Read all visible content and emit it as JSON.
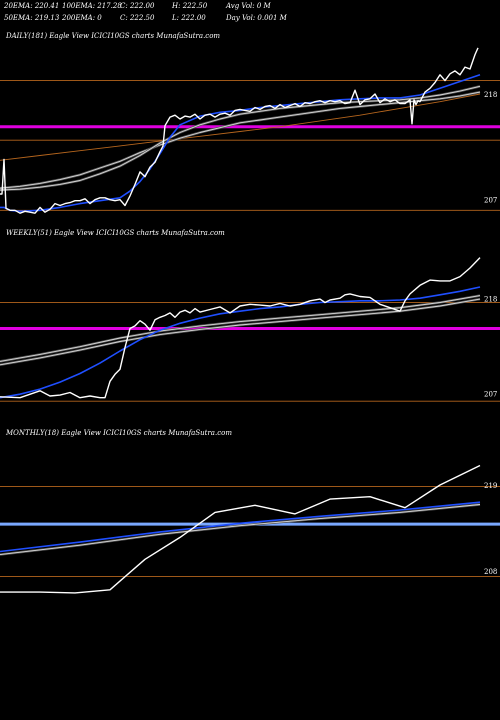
{
  "header": {
    "row1": [
      "20EMA: 220.41",
      "100EMA: 217.28",
      "C: 222.00",
      "H: 222.50",
      "Avg Vol: 0  M"
    ],
    "row2": [
      "50EMA: 219.13",
      "200EMA: 0",
      "C: 222.50",
      "L: 222.00",
      "Day Vol: 0.001 M"
    ]
  },
  "colors": {
    "price": "#ffffff",
    "ema20": "#1f4fff",
    "ema_other": "#d8d8d8",
    "hline_orange": "#b5651d",
    "hline_magenta": "#e000e0",
    "hline_blue": "#7aa8ff"
  },
  "chart_data": [
    {
      "type": "line",
      "title": "DAILY(181) Eagle   View  ICICI10GS charts MunafaSutra.com",
      "ylim": [
        205.5,
        223.5
      ],
      "yticks": [
        {
          "value": 218,
          "label": "218"
        },
        {
          "value": 207,
          "label": "207"
        }
      ],
      "hlines": [
        {
          "value": 219.8,
          "color": "orange"
        },
        {
          "value": 215.0,
          "color": "magenta"
        },
        {
          "value": 213.6,
          "color": "orange"
        },
        {
          "value": 206.3,
          "color": "orange"
        }
      ],
      "series": [
        {
          "role": "price",
          "x": [
            0,
            2,
            4,
            6,
            10,
            15,
            20,
            25,
            30,
            35,
            40,
            45,
            50,
            55,
            60,
            65,
            70,
            75,
            80,
            85,
            90,
            95,
            100,
            105,
            110,
            115,
            120,
            125,
            130,
            135,
            140,
            145,
            150,
            155,
            160,
            163,
            165,
            170,
            175,
            180,
            185,
            190,
            195,
            200,
            205,
            210,
            215,
            220,
            225,
            230,
            235,
            240,
            245,
            250,
            255,
            260,
            265,
            270,
            275,
            280,
            285,
            290,
            295,
            300,
            305,
            310,
            315,
            320,
            325,
            330,
            335,
            340,
            345,
            350,
            355,
            360,
            365,
            370,
            375,
            380,
            385,
            390,
            395,
            400,
            405,
            410,
            412,
            414,
            416,
            418,
            420,
            425,
            430,
            435,
            440,
            445,
            450,
            455,
            460,
            465,
            470,
            475,
            478
          ],
          "y": [
            208,
            208,
            211.6,
            206.5,
            206.3,
            206.3,
            206.0,
            206.2,
            206.1,
            206.0,
            206.6,
            206.1,
            206.4,
            207.0,
            206.8,
            207.0,
            207.1,
            207.3,
            207.3,
            207.5,
            207.0,
            207.4,
            207.6,
            207.6,
            207.4,
            207.3,
            207.4,
            206.8,
            207.8,
            209,
            210.3,
            209.8,
            210.8,
            211.3,
            212.4,
            213,
            215.1,
            216.0,
            216.2,
            215.8,
            216.1,
            216.0,
            216.3,
            215.8,
            216.2,
            216.3,
            216.0,
            216.3,
            216.4,
            216.2,
            216.7,
            216.8,
            216.7,
            216.6,
            217.0,
            216.8,
            217.1,
            217.2,
            216.9,
            217.3,
            217.0,
            217.2,
            217.4,
            217.1,
            217.5,
            217.4,
            217.6,
            217.7,
            217.5,
            217.7,
            217.6,
            217.7,
            217.4,
            217.5,
            218.8,
            217.3,
            217.8,
            217.9,
            218.4,
            217.5,
            217.9,
            217.6,
            217.8,
            217.4,
            217.4,
            217.8,
            215.3,
            217.8,
            217.3,
            217.7,
            217.6,
            218.6,
            219.0,
            219.6,
            220.4,
            219.8,
            220.5,
            220.8,
            220.4,
            221.2,
            221.0,
            222.5,
            223.2
          ]
        },
        {
          "role": "ema20",
          "x": [
            0,
            2,
            4,
            10,
            20,
            40,
            60,
            80,
            100,
            120,
            130,
            140,
            150,
            160,
            170,
            180,
            200,
            220,
            240,
            260,
            280,
            300,
            320,
            340,
            360,
            380,
            400,
            420,
            440,
            460,
            480
          ],
          "y": [
            206.6,
            206.6,
            206.6,
            206.3,
            206.2,
            206.3,
            206.6,
            207.0,
            207.3,
            207.6,
            208.3,
            209.3,
            210.6,
            212.2,
            213.9,
            215.2,
            216.1,
            216.5,
            216.7,
            217.0,
            217.2,
            217.4,
            217.6,
            217.8,
            217.9,
            218.0,
            218.0,
            218.3,
            219.0,
            219.7,
            220.4
          ]
        },
        {
          "role": "ema50",
          "x": [
            0,
            20,
            40,
            60,
            80,
            100,
            120,
            140,
            160,
            180,
            200,
            220,
            240,
            260,
            280,
            300,
            320,
            340,
            360,
            380,
            400,
            420,
            440,
            460,
            480
          ],
          "y": [
            208.4,
            208.5,
            208.7,
            209.0,
            209.4,
            210.1,
            210.9,
            212.0,
            213.3,
            214.4,
            215.2,
            215.8,
            216.3,
            216.6,
            216.9,
            217.1,
            217.3,
            217.5,
            217.6,
            217.7,
            217.8,
            218.0,
            218.3,
            218.7,
            219.2
          ]
        },
        {
          "role": "ema100",
          "x": [
            0,
            20,
            40,
            60,
            80,
            100,
            120,
            140,
            160,
            180,
            200,
            220,
            240,
            260,
            280,
            300,
            320,
            340,
            360,
            380,
            400,
            420,
            440,
            460,
            480
          ],
          "y": [
            208.6,
            208.8,
            209.1,
            209.5,
            210.0,
            210.7,
            211.4,
            212.3,
            213.1,
            213.8,
            214.4,
            214.9,
            215.4,
            215.7,
            216.0,
            216.3,
            216.6,
            216.9,
            217.1,
            217.3,
            217.5,
            217.7,
            217.9,
            218.2,
            218.6
          ]
        },
        {
          "role": "ema_slow",
          "x": [
            0,
            40,
            80,
            120,
            160,
            200,
            240,
            280,
            320,
            360,
            400,
            440,
            480
          ],
          "y": [
            211.5,
            212.0,
            212.5,
            213.0,
            213.5,
            214.0,
            214.5,
            215.0,
            215.6,
            216.2,
            216.9,
            217.6,
            218.4
          ]
        }
      ]
    },
    {
      "type": "line",
      "title": "WEEKLY(51) Eagle   View  ICICI10GS charts MunafaSutra.com",
      "ylim": [
        205,
        225
      ],
      "yticks": [
        {
          "value": 218,
          "label": "218"
        },
        {
          "value": 207,
          "label": "207"
        }
      ],
      "hlines": [
        {
          "value": 218.0,
          "color": "orange"
        },
        {
          "value": 215.0,
          "color": "magenta"
        },
        {
          "value": 206.6,
          "color": "orange"
        }
      ],
      "series": [
        {
          "role": "price",
          "x": [
            0,
            20,
            40,
            50,
            60,
            70,
            80,
            90,
            100,
            105,
            110,
            115,
            120,
            125,
            130,
            135,
            140,
            145,
            150,
            155,
            160,
            165,
            170,
            175,
            180,
            185,
            190,
            195,
            200,
            210,
            220,
            230,
            240,
            250,
            260,
            270,
            280,
            290,
            300,
            310,
            320,
            325,
            330,
            340,
            345,
            350,
            360,
            370,
            380,
            390,
            400,
            405,
            410,
            420,
            430,
            440,
            450,
            460,
            470,
            480
          ],
          "y": [
            207.1,
            207.0,
            207.8,
            207.2,
            207.3,
            207.6,
            207.0,
            207.2,
            207.0,
            207.0,
            208.9,
            209.7,
            210.3,
            212.8,
            215.0,
            215.3,
            215.9,
            215.5,
            214.8,
            216.0,
            216.3,
            216.5,
            216.8,
            216.3,
            216.9,
            217.1,
            216.8,
            217.3,
            216.9,
            217.2,
            217.5,
            216.8,
            217.6,
            217.8,
            217.7,
            217.6,
            217.9,
            217.6,
            217.8,
            218.2,
            218.4,
            218.0,
            218.3,
            218.5,
            218.9,
            219.0,
            218.7,
            218.6,
            217.8,
            217.4,
            217.0,
            218.2,
            219.0,
            220.0,
            220.6,
            220.5,
            220.5,
            221.0,
            222.0,
            223.2
          ]
        },
        {
          "role": "ema20",
          "x": [
            0,
            20,
            40,
            60,
            80,
            100,
            120,
            140,
            160,
            180,
            200,
            220,
            240,
            260,
            280,
            300,
            320,
            340,
            360,
            380,
            400,
            420,
            440,
            460,
            480
          ],
          "y": [
            207.0,
            207.4,
            208.0,
            208.8,
            209.8,
            211.0,
            212.4,
            213.7,
            214.8,
            215.6,
            216.2,
            216.7,
            217.0,
            217.3,
            217.5,
            217.8,
            218.0,
            218.1,
            218.2,
            218.2,
            218.3,
            218.5,
            218.9,
            219.3,
            219.8
          ]
        },
        {
          "role": "ema50",
          "x": [
            0,
            40,
            80,
            120,
            160,
            200,
            240,
            280,
            320,
            360,
            400,
            440,
            480
          ],
          "y": [
            211.2,
            212.0,
            212.9,
            213.9,
            214.7,
            215.3,
            215.8,
            216.2,
            216.6,
            217.0,
            217.4,
            218.0,
            218.8
          ]
        },
        {
          "role": "ema100",
          "x": [
            0,
            40,
            80,
            120,
            160,
            200,
            240,
            280,
            320,
            360,
            400,
            440,
            480
          ],
          "y": [
            210.8,
            211.6,
            212.5,
            213.5,
            214.3,
            214.9,
            215.4,
            215.8,
            216.2,
            216.6,
            217.0,
            217.6,
            218.4
          ]
        }
      ]
    },
    {
      "type": "line",
      "title": "MONTHLY(18) Eagle   View  ICICI10GS charts MunafaSutra.com",
      "ylim": [
        203,
        225
      ],
      "yticks": [
        {
          "value": 219,
          "label": "219"
        },
        {
          "value": 208,
          "label": "208"
        }
      ],
      "hlines": [
        {
          "value": 219.3,
          "color": "orange"
        },
        {
          "value": 214.5,
          "color": "blue"
        },
        {
          "value": 207.8,
          "color": "orange"
        }
      ],
      "series": [
        {
          "role": "price",
          "x": [
            0,
            40,
            75,
            110,
            145,
            180,
            215,
            255,
            295,
            330,
            370,
            405,
            440,
            480
          ],
          "y": [
            205.8,
            205.8,
            205.7,
            206.1,
            210.0,
            212.8,
            216.0,
            216.9,
            215.8,
            217.7,
            218.0,
            216.6,
            219.5,
            222.0
          ]
        },
        {
          "role": "ema20",
          "x": [
            0,
            80,
            160,
            240,
            320,
            400,
            480
          ],
          "y": [
            211.0,
            212.2,
            213.5,
            214.6,
            215.5,
            216.3,
            217.3
          ]
        },
        {
          "role": "ema50",
          "x": [
            0,
            80,
            160,
            240,
            320,
            400,
            480
          ],
          "y": [
            210.6,
            211.8,
            213.2,
            214.3,
            215.2,
            216.0,
            217.0
          ]
        }
      ]
    }
  ]
}
